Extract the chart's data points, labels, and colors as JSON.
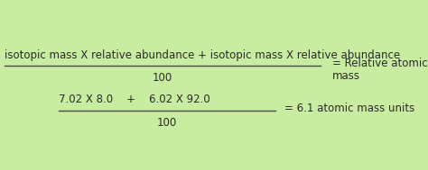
{
  "bg_color": "#c8eca0",
  "text_color": "#2a2a2a",
  "numerator_formula": "isotopic mass X relative abundance + isotopic mass X relative abundance",
  "denominator_formula": "100",
  "result_formula_line1": "= Relative atomic",
  "result_formula_line2": "mass",
  "numerator_example": "7.02 X 8.0    +    6.02 X 92.0",
  "denominator_example": "100",
  "result_example": "= 6.1 atomic mass units",
  "font_size": 8.5,
  "line_color": "#4a4a4a"
}
